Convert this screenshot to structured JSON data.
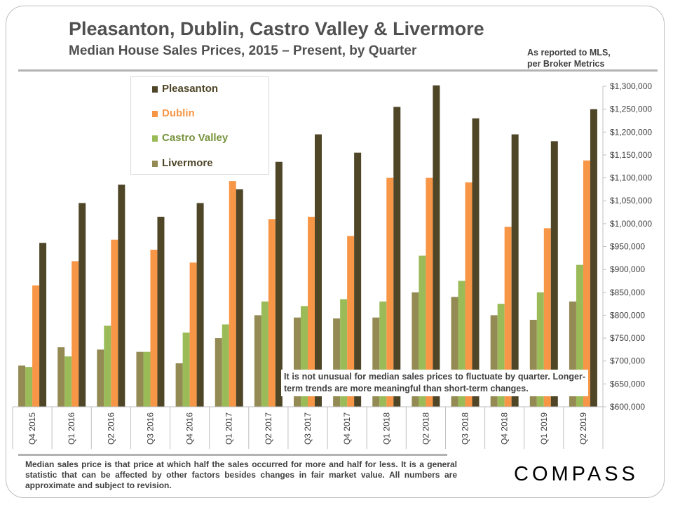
{
  "header": {
    "title": "Pleasanton, Dublin, Castro Valley & Livermore",
    "subtitle": "Median House Sales Prices, 2015 – Present, by Quarter",
    "source_line1": "As reported to MLS,",
    "source_line2": "per Broker Metrics"
  },
  "note": "It is not unusual for median sales prices to fluctuate by quarter. Longer-term trends are more meaningful than short-term changes.",
  "footnote": "Median sales price is that price at which half the sales occurred for more and half for less. It is a general statistic that can be affected by other factors besides changes in fair market value. All numbers are approximate and subject to revision.",
  "logo": "COMPASS",
  "chart_data": {
    "type": "bar",
    "categories": [
      "Q4 2015",
      "Q1 2016",
      "Q2 2016",
      "Q3 2016",
      "Q4 2016",
      "Q1 2017",
      "Q2 2017",
      "Q3 2017",
      "Q4 2017",
      "Q1 2018",
      "Q2 2018",
      "Q3 2018",
      "Q4 2018",
      "Q1 2019",
      "Q2 2019"
    ],
    "series": [
      {
        "name": "Livermore",
        "color": "#948a54",
        "values": [
          690000,
          730000,
          725000,
          720000,
          695000,
          750000,
          800000,
          795000,
          793000,
          795000,
          850000,
          840000,
          800000,
          790000,
          830000
        ]
      },
      {
        "name": "Castro Valley",
        "color": "#9bbb59",
        "values": [
          687000,
          710000,
          777000,
          720000,
          762000,
          780000,
          830000,
          820000,
          835000,
          830000,
          930000,
          875000,
          825000,
          850000,
          910000
        ]
      },
      {
        "name": "Dublin",
        "color": "#f79646",
        "values": [
          865000,
          918000,
          965000,
          943000,
          915000,
          1093000,
          1010000,
          1015000,
          973000,
          1100000,
          1100000,
          1090000,
          993000,
          990000,
          1138000
        ]
      },
      {
        "name": "Pleasanton",
        "color": "#4f4628",
        "values": [
          958000,
          1045000,
          1085000,
          1015000,
          1045000,
          1075000,
          1135000,
          1195000,
          1155000,
          1255000,
          1302000,
          1230000,
          1195000,
          1180000,
          1250000
        ]
      }
    ],
    "legend_order": [
      "Pleasanton",
      "Dublin",
      "Castro Valley",
      "Livermore"
    ],
    "legend_text_colors": {
      "Pleasanton": "#4f4628",
      "Dublin": "#f79646",
      "Castro Valley": "#77933c",
      "Livermore": "#4f4628"
    },
    "y_ticks": [
      "$600,000",
      "$650,000",
      "$700,000",
      "$750,000",
      "$800,000",
      "$850,000",
      "$900,000",
      "$950,000",
      "$1,000,000",
      "$1,050,000",
      "$1,100,000",
      "$1,150,000",
      "$1,200,000",
      "$1,250,000",
      "$1,300,000"
    ],
    "ylim": [
      600000,
      1300000
    ],
    "y_axis_side": "right",
    "legend_placement": "top-left",
    "grid": false,
    "xlabel": "",
    "ylabel": ""
  }
}
